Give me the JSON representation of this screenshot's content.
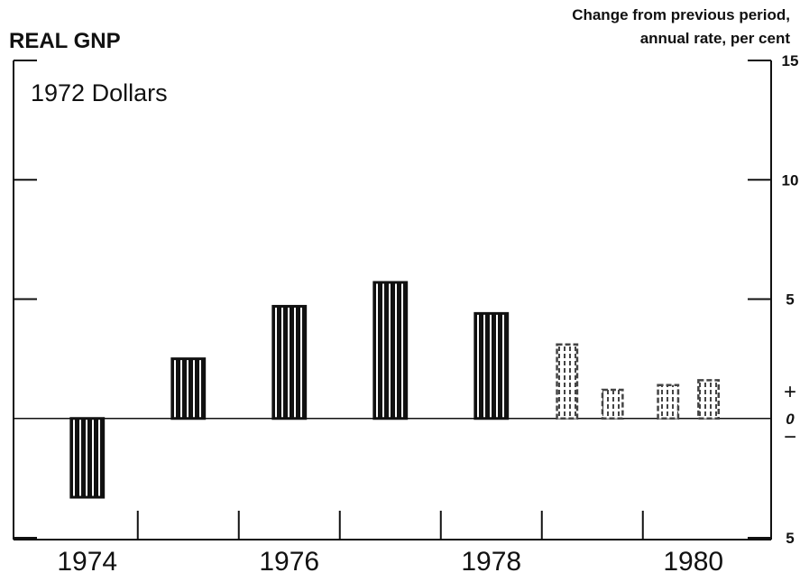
{
  "chart_data": {
    "type": "bar",
    "title": "REAL GNP",
    "subtitle": "1972 Dollars",
    "y_axis_label": [
      "Change from previous period,",
      "annual rate, per cent"
    ],
    "series": [
      {
        "color": "#111111",
        "style": "solid",
        "width": 0.32,
        "x": [
          1974.5,
          1975.5,
          1976.5,
          1977.5,
          1978.5
        ],
        "values": [
          -3.3,
          2.5,
          4.7,
          5.7,
          4.4
        ]
      },
      {
        "color": "#444444",
        "style": "dashed",
        "width": 0.2,
        "x": [
          1979.25,
          1979.7,
          1980.25,
          1980.65
        ],
        "values": [
          3.1,
          1.2,
          1.4,
          1.6
        ]
      }
    ],
    "xlim": [
      1973.77,
      1981.27
    ],
    "xticks": [
      1975,
      1976,
      1977,
      1978,
      1979,
      1980
    ],
    "year_labels": [
      {
        "value": 1974.5,
        "label": "1974"
      },
      {
        "value": 1976.5,
        "label": "1976"
      },
      {
        "value": 1978.5,
        "label": "1978"
      },
      {
        "value": 1980.5,
        "label": "1980"
      }
    ],
    "ylim": [
      -5,
      15
    ],
    "yticks": [
      15,
      10,
      5,
      0,
      {
        "value": -5,
        "label": "5"
      }
    ],
    "sign_labels": [
      "+",
      "−"
    ]
  }
}
